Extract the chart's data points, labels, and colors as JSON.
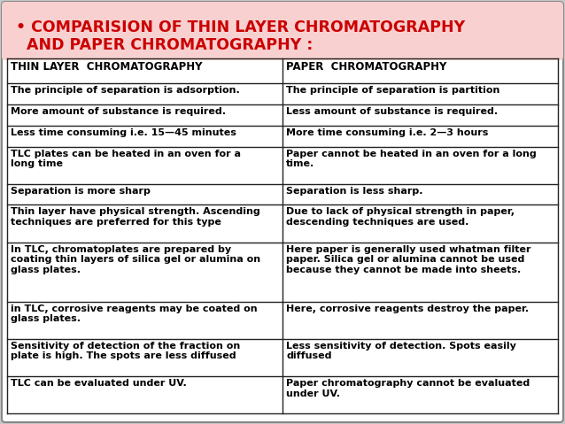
{
  "title_line1": "• COMPARISION OF THIN LAYER CHROMATOGRAPHY",
  "title_line2": "AND PAPER CHROMATOGRAPHY :",
  "title_color": "#cc0000",
  "title_bg": "#f5c0c0",
  "title_fontsize": 12.5,
  "header": [
    "THIN LAYER  CHROMATOGRAPHY",
    "PAPER  CHROMATOGRAPHY"
  ],
  "rows": [
    [
      "The principle of separation is adsorption.",
      "The principle of separation is partition"
    ],
    [
      "More amount of substance is required.",
      "Less amount of substance is required."
    ],
    [
      "Less time consuming i.e. 15—45 minutes",
      "More time consuming i.e. 2—3 hours"
    ],
    [
      "TLC plates can be heated in an oven for a\nlong time",
      "Paper cannot be heated in an oven for a long\ntime."
    ],
    [
      "Separation is more sharp",
      "Separation is less sharp."
    ],
    [
      "Thin layer have physical strength. Ascending\ntechniques are preferred for this type",
      "Due to lack of physical strength in paper,\ndescending techniques are used."
    ],
    [
      "In TLC, chromatoplates are prepared by\ncoating thin layers of silica gel or alumina on\nglass plates.",
      "Here paper is generally used whatman filter\npaper. Silica gel or alumina cannot be used\nbecause they cannot be made into sheets."
    ],
    [
      "in TLC, corrosive reagents may be coated on\nglass plates.",
      "Here, corrosive reagents destroy the paper."
    ],
    [
      "Sensitivity of detection of the fraction on\nplate is high. The spots are less diffused",
      "Less sensitivity of detection. Spots easily\ndiffused"
    ],
    [
      "TLC can be evaluated under UV.",
      "Paper chromatography cannot be evaluated\nunder UV."
    ]
  ],
  "bg_color": "#ffffff",
  "border_color": "#222222",
  "outer_bg": "#c8c8c8",
  "text_color": "#000000",
  "font_size": 8.0,
  "header_font_size": 8.5
}
